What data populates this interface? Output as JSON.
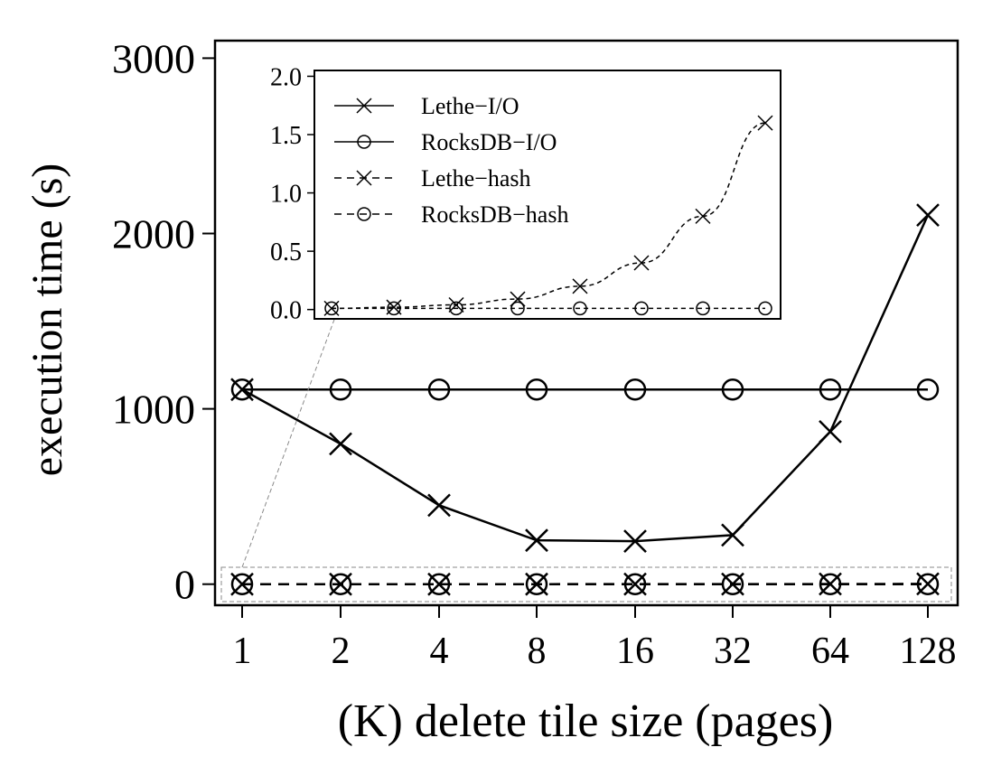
{
  "chart_data": {
    "type": "line",
    "xlabel": "(K) delete tile size (pages)",
    "ylabel": "execution time (s)",
    "x_ticks": [
      "1",
      "2",
      "4",
      "8",
      "16",
      "32",
      "64",
      "128"
    ],
    "y_ticks": [
      "0",
      "1000",
      "2000",
      "3000"
    ],
    "ylim": [
      -120,
      3100
    ],
    "x_scale": "log2",
    "grid": false,
    "legend_position": "inset top-left",
    "series": [
      {
        "name": "Lethe−I/O",
        "linestyle": "solid",
        "marker": "cross",
        "x": [
          1,
          2,
          4,
          8,
          16,
          32,
          64,
          128
        ],
        "values": [
          1110,
          800,
          450,
          250,
          245,
          280,
          870,
          2105
        ]
      },
      {
        "name": "RocksDB−I/O",
        "linestyle": "solid",
        "marker": "circle",
        "x": [
          1,
          2,
          4,
          8,
          16,
          32,
          64,
          128
        ],
        "values": [
          1110,
          1110,
          1110,
          1110,
          1110,
          1110,
          1110,
          1110
        ]
      },
      {
        "name": "Lethe−hash",
        "linestyle": "dashed",
        "marker": "cross",
        "x": [
          1,
          2,
          4,
          8,
          16,
          32,
          64,
          128
        ],
        "values": [
          0.01,
          0.02,
          0.04,
          0.09,
          0.2,
          0.4,
          0.8,
          1.6
        ]
      },
      {
        "name": "RocksDB−hash",
        "linestyle": "dashed",
        "marker": "circle",
        "x": [
          1,
          2,
          4,
          8,
          16,
          32,
          64,
          128
        ],
        "values": [
          0.01,
          0.01,
          0.01,
          0.01,
          0.01,
          0.01,
          0.01,
          0.01
        ]
      }
    ],
    "inset": {
      "series": [
        "Lethe−hash",
        "RocksDB−hash"
      ],
      "y_ticks": [
        "0.0",
        "0.5",
        "1.0",
        "1.5",
        "2.0"
      ],
      "ylim": [
        -0.08,
        2.05
      ]
    }
  }
}
